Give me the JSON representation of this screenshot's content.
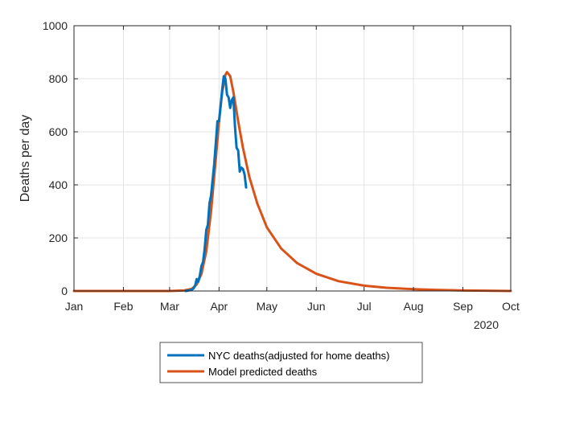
{
  "chart_data": {
    "type": "line",
    "xlabel": "",
    "ylabel": "Deaths per day",
    "x_ticks": [
      "Jan",
      "Feb",
      "Mar",
      "Apr",
      "May",
      "Jun",
      "Jul",
      "Aug",
      "Sep",
      "Oct"
    ],
    "x_secondary_label": "2020",
    "xlim": [
      "2020-01-01",
      "2020-10-01"
    ],
    "ylim": [
      0,
      1000
    ],
    "y_ticks": [
      0,
      200,
      400,
      600,
      800,
      1000
    ],
    "grid": true,
    "legend_position": "bottom-outside",
    "series": [
      {
        "name": "NYC deaths(adjusted for home deaths)",
        "color": "#0072BD",
        "points": [
          [
            "2020-03-11",
            0
          ],
          [
            "2020-03-13",
            2
          ],
          [
            "2020-03-15",
            5
          ],
          [
            "2020-03-16",
            10
          ],
          [
            "2020-03-17",
            20
          ],
          [
            "2020-03-18",
            45
          ],
          [
            "2020-03-19",
            35
          ],
          [
            "2020-03-20",
            60
          ],
          [
            "2020-03-21",
            95
          ],
          [
            "2020-03-22",
            110
          ],
          [
            "2020-03-23",
            160
          ],
          [
            "2020-03-24",
            230
          ],
          [
            "2020-03-25",
            250
          ],
          [
            "2020-03-26",
            330
          ],
          [
            "2020-03-27",
            360
          ],
          [
            "2020-03-28",
            420
          ],
          [
            "2020-03-29",
            480
          ],
          [
            "2020-03-30",
            560
          ],
          [
            "2020-03-31",
            640
          ],
          [
            "2020-04-01",
            640
          ],
          [
            "2020-04-02",
            700
          ],
          [
            "2020-04-03",
            760
          ],
          [
            "2020-04-04",
            810
          ],
          [
            "2020-04-05",
            800
          ],
          [
            "2020-04-06",
            740
          ],
          [
            "2020-04-07",
            730
          ],
          [
            "2020-04-08",
            690
          ],
          [
            "2020-04-09",
            720
          ],
          [
            "2020-04-10",
            730
          ],
          [
            "2020-04-11",
            620
          ],
          [
            "2020-04-12",
            540
          ],
          [
            "2020-04-13",
            530
          ],
          [
            "2020-04-14",
            450
          ],
          [
            "2020-04-15",
            465
          ],
          [
            "2020-04-16",
            460
          ],
          [
            "2020-04-17",
            440
          ],
          [
            "2020-04-18",
            390
          ]
        ]
      },
      {
        "name": "Model predicted deaths",
        "color": "#D95319",
        "points": [
          [
            "2020-01-01",
            0
          ],
          [
            "2020-02-01",
            0
          ],
          [
            "2020-03-01",
            0
          ],
          [
            "2020-03-10",
            2
          ],
          [
            "2020-03-15",
            8
          ],
          [
            "2020-03-18",
            25
          ],
          [
            "2020-03-21",
            65
          ],
          [
            "2020-03-24",
            150
          ],
          [
            "2020-03-27",
            300
          ],
          [
            "2020-03-30",
            500
          ],
          [
            "2020-04-01",
            640
          ],
          [
            "2020-04-03",
            750
          ],
          [
            "2020-04-05",
            815
          ],
          [
            "2020-04-06",
            825
          ],
          [
            "2020-04-08",
            810
          ],
          [
            "2020-04-10",
            750
          ],
          [
            "2020-04-13",
            640
          ],
          [
            "2020-04-16",
            540
          ],
          [
            "2020-04-20",
            430
          ],
          [
            "2020-04-25",
            330
          ],
          [
            "2020-05-01",
            240
          ],
          [
            "2020-05-10",
            160
          ],
          [
            "2020-05-20",
            105
          ],
          [
            "2020-06-01",
            65
          ],
          [
            "2020-06-15",
            37
          ],
          [
            "2020-07-01",
            20
          ],
          [
            "2020-07-15",
            12
          ],
          [
            "2020-08-01",
            7
          ],
          [
            "2020-08-15",
            4
          ],
          [
            "2020-09-01",
            2
          ],
          [
            "2020-09-15",
            1
          ],
          [
            "2020-10-01",
            0
          ]
        ]
      }
    ]
  }
}
